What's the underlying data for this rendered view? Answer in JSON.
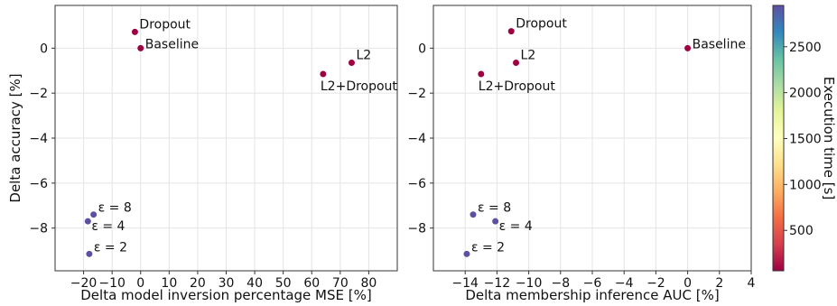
{
  "chart_data": [
    {
      "type": "scatter",
      "xlabel": "Delta model inversion percentage MSE [%]",
      "ylabel": "Delta accuracy [%]",
      "xlim": [
        -30,
        90
      ],
      "ylim": [
        -9.9,
        1.9
      ],
      "xticks": [
        -20,
        -10,
        0,
        10,
        20,
        30,
        40,
        50,
        60,
        70,
        80
      ],
      "xtick_labels": [
        "−20",
        "−10",
        "0",
        "10",
        "20",
        "30",
        "40",
        "50",
        "60",
        "70",
        "80"
      ],
      "yticks": [
        0,
        -2,
        -4,
        -6,
        -8
      ],
      "ytick_labels": [
        "0",
        "−2",
        "−4",
        "−6",
        "−8"
      ],
      "grid": true,
      "points": [
        {
          "label": "Dropout",
          "x": -2,
          "y": 0.72,
          "color": "#9e0142"
        },
        {
          "label": "Baseline",
          "x": 0,
          "y": 0.0,
          "color": "#9e0142"
        },
        {
          "label": "L2",
          "x": 74,
          "y": -0.65,
          "color": "#9e0142"
        },
        {
          "label": "L2+Dropout",
          "x": 64,
          "y": -1.15,
          "color": "#9e0142"
        },
        {
          "label": "ε = 8",
          "x": -16.5,
          "y": -7.4,
          "color": "#5e4fa2"
        },
        {
          "label": "ε = 4",
          "x": -18.5,
          "y": -7.7,
          "color": "#5e4fa2"
        },
        {
          "label": "ε = 2",
          "x": -18,
          "y": -9.15,
          "color": "#5e4fa2"
        }
      ]
    },
    {
      "type": "scatter",
      "xlabel": "Delta membership inference AUC [%]",
      "ylabel": "",
      "xlim": [
        -16,
        4
      ],
      "ylim": [
        -9.9,
        1.9
      ],
      "xticks": [
        -14,
        -12,
        -10,
        -8,
        -6,
        -4,
        -2,
        0,
        2,
        4
      ],
      "xtick_labels": [
        "−14",
        "−12",
        "−10",
        "−8",
        "−6",
        "−4",
        "−2",
        "0",
        "2",
        "4"
      ],
      "yticks": [
        0,
        -2,
        -4,
        -6,
        -8
      ],
      "ytick_labels": [
        "0",
        "−2",
        "−4",
        "−6",
        "−8"
      ],
      "grid": true,
      "points": [
        {
          "label": "Dropout",
          "x": -11.1,
          "y": 0.75,
          "color": "#9e0142"
        },
        {
          "label": "Baseline",
          "x": 0,
          "y": 0.0,
          "color": "#9e0142"
        },
        {
          "label": "L2",
          "x": -10.8,
          "y": -0.65,
          "color": "#9e0142"
        },
        {
          "label": "L2+Dropout",
          "x": -13,
          "y": -1.15,
          "color": "#9e0142"
        },
        {
          "label": "ε = 8",
          "x": -13.5,
          "y": -7.4,
          "color": "#5e4fa2"
        },
        {
          "label": "ε = 4",
          "x": -12.1,
          "y": -7.7,
          "color": "#5e4fa2"
        },
        {
          "label": "ε = 2",
          "x": -13.9,
          "y": -9.15,
          "color": "#5e4fa2"
        }
      ]
    }
  ],
  "colorbar": {
    "label": "Execution time [s]",
    "range": [
      60,
      2950
    ],
    "ticks": [
      500,
      1000,
      1500,
      2000,
      2500
    ],
    "tick_labels": [
      "500",
      "1000",
      "1500",
      "2000",
      "2500"
    ],
    "colormap": "Spectral",
    "colors": [
      "#9e0142",
      "#d53e4f",
      "#f46d43",
      "#fdae61",
      "#fee08b",
      "#ffffbf",
      "#e6f598",
      "#abdda4",
      "#66c2a5",
      "#3288bd",
      "#5e4fa2"
    ]
  }
}
